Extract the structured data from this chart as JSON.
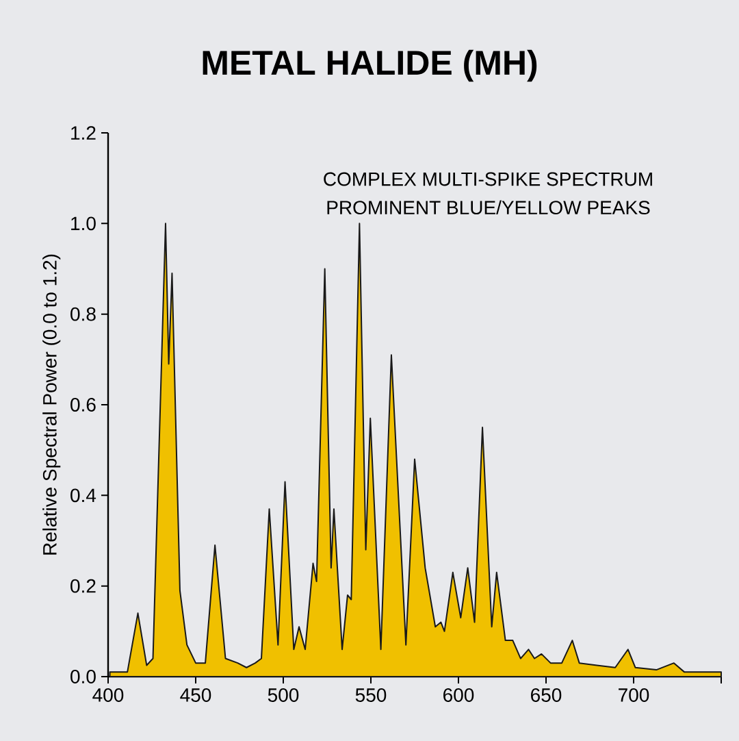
{
  "chart_data": {
    "type": "area",
    "title": "METAL HALIDE (MH)",
    "ylabel": "Relative Spectral Power (0.0 to 1.2)",
    "annotations": [
      "COMPLEX MULTI-SPIKE SPECTRUM",
      "PROMINENT BLUE/YELLOW PEAKS"
    ],
    "xlim": [
      400,
      750
    ],
    "xticks": [
      400,
      450,
      500,
      550,
      600,
      650,
      700,
      {
        "value": 750,
        "label": null
      }
    ],
    "ylim": [
      0,
      1.2
    ],
    "yticks": [
      {
        "value": 0,
        "label": "0.0"
      },
      {
        "value": 0.2,
        "label": "0.2"
      },
      {
        "value": 0.4,
        "label": "0.4"
      },
      {
        "value": 0.6,
        "label": "0.6"
      },
      {
        "value": 0.8,
        "label": "0.8"
      },
      {
        "value": 1.0,
        "label": "1.0"
      },
      {
        "value": 1.2,
        "label": "1.2"
      }
    ],
    "grid": false,
    "series": [
      {
        "color": "#f0c000",
        "x": [
          401,
          411,
          417,
          422,
          425.6,
          432.8,
          434.6,
          436.5,
          441,
          445,
          450,
          455.5,
          461,
          467,
          474,
          479,
          484,
          487.5,
          492,
          497,
          501,
          506,
          509,
          512.5,
          517,
          519,
          523.7,
          527.3,
          528.9,
          533.6,
          536.7,
          538.8,
          543.5,
          547.1,
          549.7,
          555.7,
          561.7,
          570,
          575,
          581,
          586.8,
          590,
          592,
          596.8,
          601.3,
          605.3,
          609.2,
          613.7,
          619,
          621.8,
          626.8,
          631,
          635.5,
          640,
          643.4,
          647.4,
          652.6,
          659,
          665,
          669,
          679,
          689.5,
          696.8,
          701,
          713,
          723,
          729,
          750
        ],
        "values": [
          0.01,
          0.01,
          0.14,
          0.025,
          0.04,
          1.0,
          0.69,
          0.89,
          0.19,
          0.07,
          0.03,
          0.03,
          0.29,
          0.04,
          0.03,
          0.02,
          0.03,
          0.04,
          0.37,
          0.07,
          0.43,
          0.06,
          0.11,
          0.06,
          0.25,
          0.21,
          0.9,
          0.24,
          0.37,
          0.06,
          0.18,
          0.17,
          1.0,
          0.28,
          0.57,
          0.06,
          0.71,
          0.07,
          0.48,
          0.24,
          0.11,
          0.12,
          0.1,
          0.23,
          0.13,
          0.24,
          0.12,
          0.55,
          0.11,
          0.23,
          0.08,
          0.08,
          0.04,
          0.06,
          0.04,
          0.05,
          0.03,
          0.03,
          0.08,
          0.03,
          0.025,
          0.02,
          0.06,
          0.02,
          0.015,
          0.03,
          0.01,
          0.01
        ]
      }
    ]
  }
}
